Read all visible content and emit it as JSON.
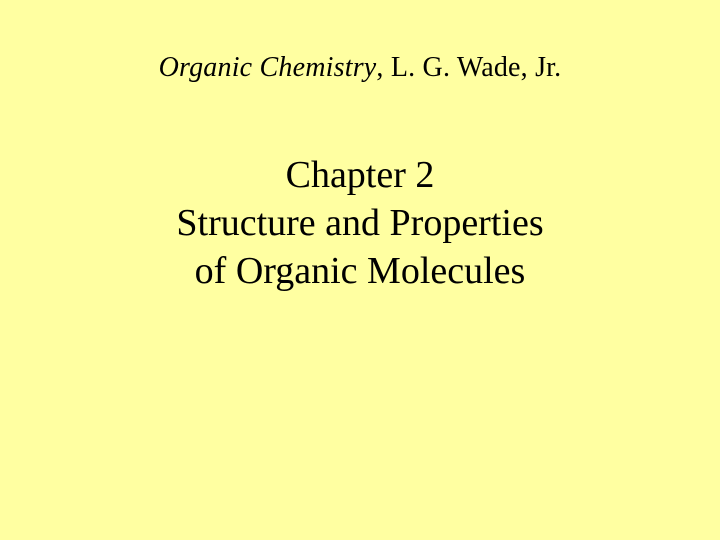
{
  "slide": {
    "background_color": "#ffffa1",
    "text_color": "#000000",
    "header": {
      "book_title": "Organic Chemistry",
      "author": ", L. G. Wade, Jr.",
      "font_size_pt": 28,
      "book_title_style": "italic"
    },
    "title": {
      "line1": "Chapter 2",
      "line2": "Structure and Properties",
      "line3": "of Organic Molecules",
      "font_size_pt": 38
    }
  }
}
